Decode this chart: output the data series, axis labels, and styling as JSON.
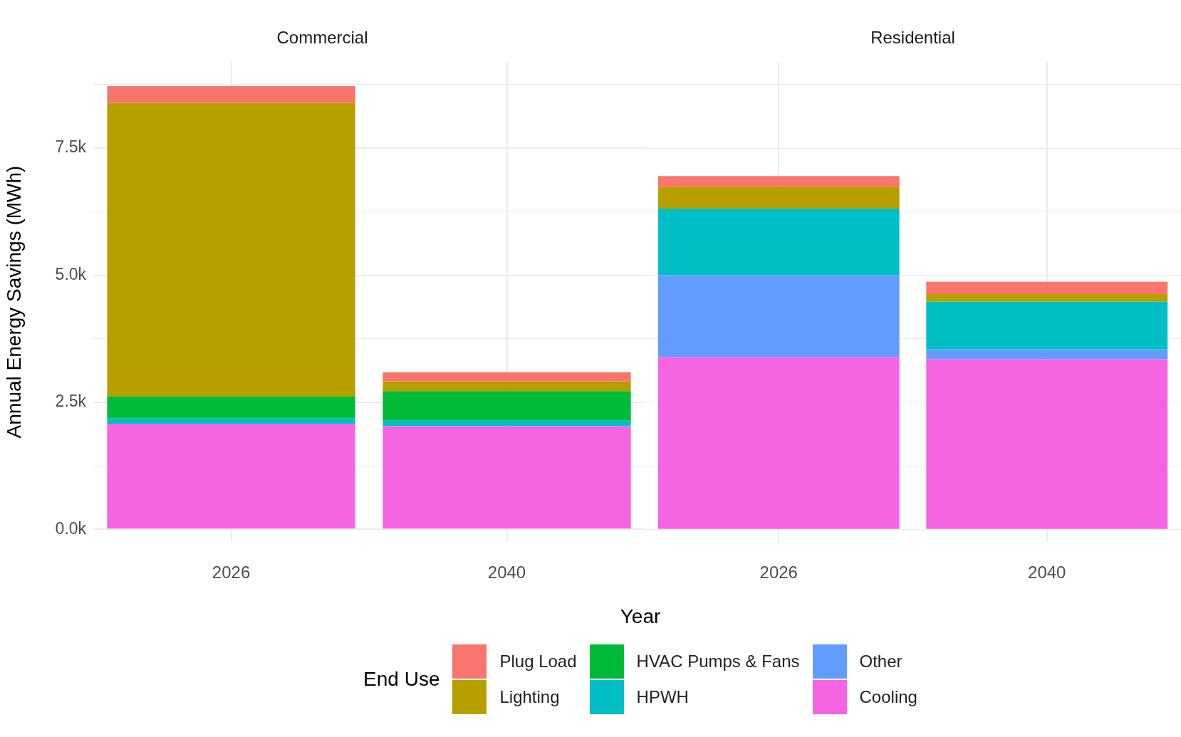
{
  "chart_data": [
    {
      "type": "bar",
      "title": "Commercial",
      "xlabel": "Year",
      "ylabel": "Annual Energy Savings (MWh)",
      "legend_title": "End Use",
      "legend": "bottom",
      "stacked": true,
      "grid": true,
      "categories": [
        "2026",
        "2040"
      ],
      "ylim": [
        -250,
        9200
      ],
      "yticks": [
        {
          "value": 0,
          "label": "0.0k"
        },
        {
          "value": 1250,
          "label": null
        },
        {
          "value": 2500,
          "label": "2.5k"
        },
        {
          "value": 3750,
          "label": null
        },
        {
          "value": 5000,
          "label": "5.0k"
        },
        {
          "value": 6250,
          "label": null
        },
        {
          "value": 7500,
          "label": "7.5k"
        },
        {
          "value": 8750,
          "label": null
        }
      ],
      "series": [
        {
          "name": "Cooling",
          "color": "#f564e3",
          "values": [
            2080,
            2030
          ]
        },
        {
          "name": "Other",
          "color": "#619cff",
          "values": [
            0,
            0
          ]
        },
        {
          "name": "HPWH",
          "color": "#00bfc4",
          "values": [
            100,
            110
          ]
        },
        {
          "name": "HVAC Pumps & Fans",
          "color": "#00ba38",
          "values": [
            430,
            580
          ]
        },
        {
          "name": "Lighting",
          "color": "#b79f00",
          "values": [
            5780,
            190
          ]
        },
        {
          "name": "Plug Load",
          "color": "#f8766d",
          "values": [
            330,
            180
          ]
        }
      ]
    },
    {
      "type": "bar",
      "title": "Residential",
      "stacked": true,
      "grid": true,
      "tick_labels": "x",
      "categories": [
        "2026",
        "2040"
      ],
      "ylim": [
        -250,
        9200
      ],
      "yticks": [
        {
          "value": 0,
          "label": null
        },
        {
          "value": 1250,
          "label": null
        },
        {
          "value": 2500,
          "label": null
        },
        {
          "value": 3750,
          "label": null
        },
        {
          "value": 5000,
          "label": null
        },
        {
          "value": 6250,
          "label": null
        },
        {
          "value": 7500,
          "label": null
        },
        {
          "value": 8750,
          "label": null
        }
      ],
      "series": [
        {
          "color": "#f564e3",
          "values": [
            3390,
            3350
          ]
        },
        {
          "color": "#619cff",
          "values": [
            1610,
            190
          ]
        },
        {
          "color": "#00bfc4",
          "values": [
            1310,
            940
          ]
        },
        {
          "color": "#00ba38",
          "values": [
            0,
            0
          ]
        },
        {
          "color": "#b79f00",
          "values": [
            430,
            150
          ]
        },
        {
          "color": "#f8766d",
          "values": [
            210,
            240
          ]
        }
      ]
    }
  ]
}
